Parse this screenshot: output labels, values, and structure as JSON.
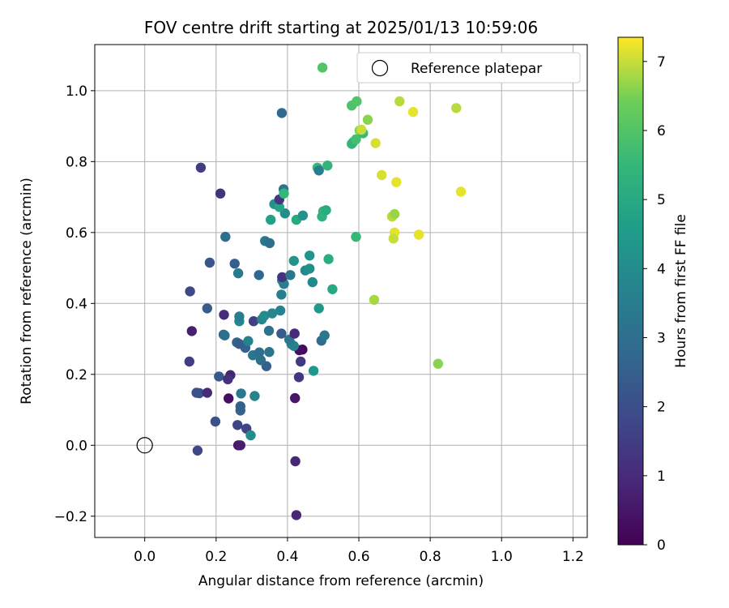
{
  "chart_data": {
    "type": "scatter",
    "title": "FOV centre drift starting at 2025/01/13 10:59:06",
    "xlabel": "Angular distance from reference (arcmin)",
    "ylabel": "Rotation from reference (arcmin)",
    "xlim": [
      -0.14,
      1.24
    ],
    "ylim": [
      -0.26,
      1.13
    ],
    "xticks": [
      0.0,
      0.2,
      0.4,
      0.6,
      0.8,
      1.0,
      1.2
    ],
    "xtick_labels": [
      "0.0",
      "0.2",
      "0.4",
      "0.6",
      "0.8",
      "1.0",
      "1.2"
    ],
    "yticks": [
      -0.2,
      0.0,
      0.2,
      0.4,
      0.6,
      0.8,
      1.0
    ],
    "ytick_labels": [
      "−0.2",
      "0.0",
      "0.2",
      "0.4",
      "0.6",
      "0.8",
      "1.0"
    ],
    "grid": true,
    "legend": {
      "placement": "upper-right",
      "entries": [
        "Reference platepar"
      ]
    },
    "colormap": "viridis",
    "colorbar": {
      "label": "Hours from first FF file",
      "range": [
        0,
        7.35
      ],
      "ticks": [
        0,
        1,
        2,
        3,
        4,
        5,
        6,
        7
      ],
      "tick_labels": [
        "0",
        "1",
        "2",
        "3",
        "4",
        "5",
        "6",
        "7"
      ]
    },
    "reference_point": {
      "x": 0.0,
      "y": 0.0,
      "label": "Reference platepar"
    },
    "points": [
      {
        "x": 0.425,
        "y": -0.197,
        "c": 0.9
      },
      {
        "x": 0.422,
        "y": -0.045,
        "c": 0.9
      },
      {
        "x": 0.148,
        "y": -0.015,
        "c": 1.8
      },
      {
        "x": 0.262,
        "y": 0.0,
        "c": 0.5
      },
      {
        "x": 0.268,
        "y": 0.0,
        "c": 0.7
      },
      {
        "x": 0.26,
        "y": 0.057,
        "c": 1.7
      },
      {
        "x": 0.285,
        "y": 0.047,
        "c": 1.7
      },
      {
        "x": 0.198,
        "y": 0.067,
        "c": 2.1
      },
      {
        "x": 0.297,
        "y": 0.028,
        "c": 4.0
      },
      {
        "x": 0.268,
        "y": 0.098,
        "c": 2.6
      },
      {
        "x": 0.268,
        "y": 0.11,
        "c": 2.6
      },
      {
        "x": 0.235,
        "y": 0.132,
        "c": 0.3
      },
      {
        "x": 0.421,
        "y": 0.133,
        "c": 0.5
      },
      {
        "x": 0.145,
        "y": 0.148,
        "c": 2.1
      },
      {
        "x": 0.153,
        "y": 0.147,
        "c": 2.1
      },
      {
        "x": 0.175,
        "y": 0.148,
        "c": 1.0
      },
      {
        "x": 0.27,
        "y": 0.146,
        "c": 3.3
      },
      {
        "x": 0.308,
        "y": 0.139,
        "c": 3.7
      },
      {
        "x": 0.208,
        "y": 0.194,
        "c": 2.3
      },
      {
        "x": 0.24,
        "y": 0.198,
        "c": 0.8
      },
      {
        "x": 0.233,
        "y": 0.186,
        "c": 1.2
      },
      {
        "x": 0.432,
        "y": 0.192,
        "c": 1.3
      },
      {
        "x": 0.473,
        "y": 0.21,
        "c": 4.4
      },
      {
        "x": 0.125,
        "y": 0.236,
        "c": 1.5
      },
      {
        "x": 0.341,
        "y": 0.223,
        "c": 2.5
      },
      {
        "x": 0.325,
        "y": 0.24,
        "c": 3.0
      },
      {
        "x": 0.437,
        "y": 0.236,
        "c": 1.4
      },
      {
        "x": 0.442,
        "y": 0.27,
        "c": 0.2
      },
      {
        "x": 0.433,
        "y": 0.268,
        "c": 0.3
      },
      {
        "x": 0.303,
        "y": 0.254,
        "c": 3.2
      },
      {
        "x": 0.321,
        "y": 0.262,
        "c": 3.0
      },
      {
        "x": 0.349,
        "y": 0.263,
        "c": 3.2
      },
      {
        "x": 0.282,
        "y": 0.275,
        "c": 2.5
      },
      {
        "x": 0.258,
        "y": 0.29,
        "c": 2.7
      },
      {
        "x": 0.265,
        "y": 0.286,
        "c": 2.4
      },
      {
        "x": 0.29,
        "y": 0.294,
        "c": 3.7
      },
      {
        "x": 0.411,
        "y": 0.285,
        "c": 3.8
      },
      {
        "x": 0.418,
        "y": 0.28,
        "c": 3.6
      },
      {
        "x": 0.405,
        "y": 0.298,
        "c": 3.3
      },
      {
        "x": 0.495,
        "y": 0.295,
        "c": 2.9
      },
      {
        "x": 0.504,
        "y": 0.31,
        "c": 3.3
      },
      {
        "x": 0.221,
        "y": 0.312,
        "c": 2.8
      },
      {
        "x": 0.224,
        "y": 0.31,
        "c": 3.0
      },
      {
        "x": 0.132,
        "y": 0.322,
        "c": 0.7
      },
      {
        "x": 0.348,
        "y": 0.323,
        "c": 3.1
      },
      {
        "x": 0.383,
        "y": 0.315,
        "c": 2.4
      },
      {
        "x": 0.42,
        "y": 0.315,
        "c": 1.0
      },
      {
        "x": 0.305,
        "y": 0.35,
        "c": 1.6
      },
      {
        "x": 0.265,
        "y": 0.35,
        "c": 3.8
      },
      {
        "x": 0.265,
        "y": 0.363,
        "c": 3.5
      },
      {
        "x": 0.328,
        "y": 0.355,
        "c": 3.8
      },
      {
        "x": 0.335,
        "y": 0.365,
        "c": 4.0
      },
      {
        "x": 0.357,
        "y": 0.372,
        "c": 3.8
      },
      {
        "x": 0.38,
        "y": 0.38,
        "c": 3.7
      },
      {
        "x": 0.222,
        "y": 0.368,
        "c": 1.0
      },
      {
        "x": 0.175,
        "y": 0.386,
        "c": 2.4
      },
      {
        "x": 0.488,
        "y": 0.386,
        "c": 4.4
      },
      {
        "x": 0.127,
        "y": 0.434,
        "c": 1.8
      },
      {
        "x": 0.383,
        "y": 0.425,
        "c": 3.5
      },
      {
        "x": 0.39,
        "y": 0.455,
        "c": 3.5
      },
      {
        "x": 0.385,
        "y": 0.465,
        "c": 3.5
      },
      {
        "x": 0.385,
        "y": 0.474,
        "c": 1.2
      },
      {
        "x": 0.408,
        "y": 0.48,
        "c": 3.2
      },
      {
        "x": 0.47,
        "y": 0.46,
        "c": 3.9
      },
      {
        "x": 0.45,
        "y": 0.493,
        "c": 3.9
      },
      {
        "x": 0.462,
        "y": 0.498,
        "c": 4.1
      },
      {
        "x": 0.526,
        "y": 0.44,
        "c": 5.0
      },
      {
        "x": 0.32,
        "y": 0.48,
        "c": 2.8
      },
      {
        "x": 0.262,
        "y": 0.485,
        "c": 3.4
      },
      {
        "x": 0.418,
        "y": 0.52,
        "c": 4.2
      },
      {
        "x": 0.182,
        "y": 0.515,
        "c": 2.2
      },
      {
        "x": 0.252,
        "y": 0.512,
        "c": 2.5
      },
      {
        "x": 0.462,
        "y": 0.535,
        "c": 4.3
      },
      {
        "x": 0.515,
        "y": 0.525,
        "c": 5.1
      },
      {
        "x": 0.226,
        "y": 0.588,
        "c": 3.0
      },
      {
        "x": 0.337,
        "y": 0.576,
        "c": 3.3
      },
      {
        "x": 0.35,
        "y": 0.57,
        "c": 3.0
      },
      {
        "x": 0.592,
        "y": 0.588,
        "c": 5.5
      },
      {
        "x": 0.353,
        "y": 0.636,
        "c": 4.7
      },
      {
        "x": 0.425,
        "y": 0.636,
        "c": 5.0
      },
      {
        "x": 0.443,
        "y": 0.648,
        "c": 4.2
      },
      {
        "x": 0.393,
        "y": 0.654,
        "c": 4.0
      },
      {
        "x": 0.363,
        "y": 0.68,
        "c": 4.2
      },
      {
        "x": 0.377,
        "y": 0.672,
        "c": 4.8
      },
      {
        "x": 0.377,
        "y": 0.693,
        "c": 1.3
      },
      {
        "x": 0.389,
        "y": 0.722,
        "c": 3.2
      },
      {
        "x": 0.39,
        "y": 0.71,
        "c": 5.5
      },
      {
        "x": 0.5,
        "y": 0.66,
        "c": 5.5
      },
      {
        "x": 0.497,
        "y": 0.645,
        "c": 5.3
      },
      {
        "x": 0.508,
        "y": 0.663,
        "c": 5.1
      },
      {
        "x": 0.212,
        "y": 0.71,
        "c": 1.2
      },
      {
        "x": 0.157,
        "y": 0.783,
        "c": 1.5
      },
      {
        "x": 0.484,
        "y": 0.783,
        "c": 5.5
      },
      {
        "x": 0.488,
        "y": 0.775,
        "c": 3.5
      },
      {
        "x": 0.512,
        "y": 0.789,
        "c": 5.4
      },
      {
        "x": 0.384,
        "y": 0.937,
        "c": 2.8
      },
      {
        "x": 0.58,
        "y": 0.85,
        "c": 5.5
      },
      {
        "x": 0.584,
        "y": 0.855,
        "c": 5.4
      },
      {
        "x": 0.592,
        "y": 0.863,
        "c": 5.8
      },
      {
        "x": 0.602,
        "y": 0.888,
        "c": 6.5
      },
      {
        "x": 0.612,
        "y": 0.88,
        "c": 5.6
      },
      {
        "x": 0.607,
        "y": 0.89,
        "c": 7.0
      },
      {
        "x": 0.625,
        "y": 0.918,
        "c": 6.6
      },
      {
        "x": 0.58,
        "y": 0.958,
        "c": 5.9
      },
      {
        "x": 0.594,
        "y": 0.97,
        "c": 6.0
      },
      {
        "x": 0.498,
        "y": 1.065,
        "c": 6.0
      },
      {
        "x": 0.647,
        "y": 0.852,
        "c": 7.1
      },
      {
        "x": 0.664,
        "y": 0.762,
        "c": 7.1
      },
      {
        "x": 0.714,
        "y": 0.97,
        "c": 6.9
      },
      {
        "x": 0.752,
        "y": 0.94,
        "c": 7.2
      },
      {
        "x": 0.873,
        "y": 0.951,
        "c": 6.9
      },
      {
        "x": 0.705,
        "y": 0.742,
        "c": 7.2
      },
      {
        "x": 0.886,
        "y": 0.715,
        "c": 7.2
      },
      {
        "x": 0.693,
        "y": 0.645,
        "c": 6.9
      },
      {
        "x": 0.7,
        "y": 0.652,
        "c": 6.7
      },
      {
        "x": 0.7,
        "y": 0.6,
        "c": 7.2
      },
      {
        "x": 0.697,
        "y": 0.583,
        "c": 7.0
      },
      {
        "x": 0.768,
        "y": 0.594,
        "c": 7.2
      },
      {
        "x": 0.643,
        "y": 0.41,
        "c": 6.8
      },
      {
        "x": 0.822,
        "y": 0.23,
        "c": 6.6
      }
    ]
  }
}
